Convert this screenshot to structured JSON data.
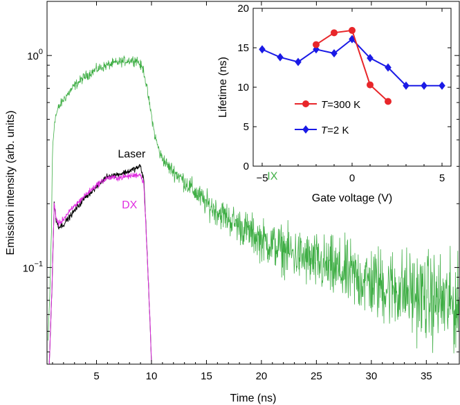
{
  "chart_data": [
    {
      "type": "line",
      "panel": "main",
      "xlabel": "Time (ns)",
      "ylabel": "Emission intensity (arb. units)",
      "xlim": [
        0.5,
        38
      ],
      "ylim": [
        0.035,
        1.8
      ],
      "yscale": "log",
      "xticks": [
        5,
        10,
        15,
        20,
        25,
        30,
        35
      ],
      "xtick_labels": [
        "5",
        "10",
        "15",
        "20",
        "25",
        "30",
        "35"
      ],
      "yticks": [
        0.1,
        1.0
      ],
      "ytick_labels": [
        {
          "base": "10",
          "exp": "−1"
        },
        {
          "base": "10",
          "exp": "0"
        }
      ],
      "grid": false,
      "legend": "none",
      "series": [
        {
          "name": "IX",
          "color": "#3fae45",
          "noisy": true,
          "x": [
            0.6,
            0.75,
            0.9,
            1.0,
            1.2,
            1.5,
            2.0,
            3.0,
            4.0,
            5.0,
            6.0,
            7.0,
            8.0,
            8.7,
            9.3,
            9.8,
            10.3,
            10.8,
            11.5,
            12.5,
            13.5,
            15,
            17,
            20,
            23,
            26,
            30,
            34,
            38
          ],
          "y": [
            0.045,
            0.075,
            0.15,
            0.36,
            0.5,
            0.56,
            0.62,
            0.72,
            0.8,
            0.86,
            0.9,
            0.93,
            0.95,
            0.95,
            0.85,
            0.6,
            0.42,
            0.34,
            0.3,
            0.27,
            0.24,
            0.2,
            0.17,
            0.135,
            0.115,
            0.1,
            0.085,
            0.075,
            0.065
          ]
        },
        {
          "name": "Laser",
          "color": "#000000",
          "noisy": true,
          "x": [
            0.7,
            0.95,
            1.15,
            1.35,
            1.6,
            2.0,
            3.0,
            4.0,
            5.0,
            6.0,
            7.0,
            8.0,
            9.0,
            9.3,
            9.6,
            9.9,
            10.0
          ],
          "y": [
            0.035,
            0.08,
            0.2,
            0.165,
            0.155,
            0.16,
            0.185,
            0.215,
            0.24,
            0.27,
            0.275,
            0.285,
            0.3,
            0.26,
            0.12,
            0.05,
            0.035
          ]
        },
        {
          "name": "DX",
          "color": "#e02ee0",
          "noisy": true,
          "x": [
            0.7,
            0.95,
            1.15,
            1.35,
            1.6,
            2.0,
            3.0,
            4.0,
            5.0,
            6.0,
            7.0,
            8.0,
            9.0,
            9.3,
            9.6,
            9.9,
            10.0
          ],
          "y": [
            0.035,
            0.08,
            0.2,
            0.17,
            0.16,
            0.17,
            0.195,
            0.22,
            0.245,
            0.265,
            0.265,
            0.27,
            0.275,
            0.25,
            0.12,
            0.05,
            0.035
          ]
        }
      ],
      "annotations": [
        {
          "text": "Laser",
          "x": 8.2,
          "y": 0.33,
          "color": "#000000"
        },
        {
          "text": "DX",
          "x": 8.0,
          "y": 0.19,
          "color": "#e02ee0"
        },
        {
          "text": "IX",
          "x": 21.0,
          "y": 0.26,
          "color": "#3fae45"
        }
      ]
    },
    {
      "type": "line",
      "panel": "inset",
      "xlabel": "Gate voltage (V)",
      "ylabel": "Lifetime (ns)",
      "xlim": [
        -5.5,
        5.5
      ],
      "ylim": [
        0,
        20
      ],
      "xticks": [
        -5,
        0,
        5
      ],
      "xtick_labels": [
        "−5",
        "0",
        "5"
      ],
      "yticks": [
        0,
        5,
        10,
        15,
        20
      ],
      "ytick_labels": [
        "0",
        "5",
        "10",
        "15",
        "20"
      ],
      "grid": false,
      "legend": "bottom-left",
      "series": [
        {
          "name": "T=300 K",
          "name_italic": "T",
          "name_rest": "=300 K",
          "color": "#e8262a",
          "marker": "circle",
          "x": [
            -2,
            -1,
            0,
            1,
            2
          ],
          "y": [
            15.4,
            16.9,
            17.2,
            10.3,
            8.2
          ]
        },
        {
          "name": "T=2 K",
          "name_italic": "T",
          "name_rest": "=2 K",
          "color": "#1a1ae6",
          "marker": "diamond",
          "x": [
            -5,
            -4,
            -3,
            -2,
            -1,
            0,
            1,
            2,
            3,
            4,
            5
          ],
          "y": [
            14.8,
            13.8,
            13.2,
            14.8,
            14.3,
            16.1,
            13.7,
            12.5,
            10.2,
            10.2,
            10.2
          ]
        }
      ]
    }
  ]
}
